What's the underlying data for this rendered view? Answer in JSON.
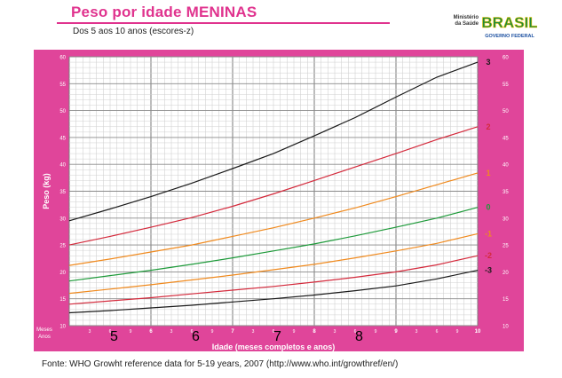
{
  "header": {
    "title": "Peso por idade MENINAS",
    "subtitle": "Dos 5 aos 10 anos (escores-z)"
  },
  "logo": {
    "ministry_line1": "Ministério",
    "ministry_line2": "da Saúde",
    "brand": "BRASIL",
    "tagline": "GOVERNO FEDERAL"
  },
  "footer": {
    "source": "Fonte: WHO Growht reference data for 5-19 years, 2007 (http://www.who.int/growthref/en/)"
  },
  "colors": {
    "frame": "#e0459a",
    "z3": "#1a1a1a",
    "z2": "#d42a3c",
    "z1": "#f08a1e",
    "z0": "#1e9a3a",
    "zm1": "#f08a1e",
    "zm2": "#d42a3c",
    "zm3": "#1a1a1a"
  },
  "chart_data": {
    "type": "line",
    "title": "Peso por idade MENINAS",
    "xlabel": "Idade (meses completos e anos)",
    "ylabel": "Peso (kg)",
    "corner_label_top": "Meses",
    "corner_label_bottom": "Anos",
    "xlim": [
      5,
      10
    ],
    "ylim": [
      10,
      60
    ],
    "yticks": [
      10,
      15,
      20,
      25,
      30,
      35,
      40,
      45,
      50,
      55,
      60
    ],
    "year_ticks": [
      "6",
      "7",
      "8",
      "9",
      "10"
    ],
    "month_ticks": [
      "3",
      "6",
      "9"
    ],
    "grid": true,
    "x": [
      5,
      5.5,
      6,
      6.5,
      7,
      7.5,
      8,
      8.5,
      9,
      9.5,
      10
    ],
    "series": [
      {
        "name": "3",
        "values": [
          29.5,
          31.7,
          34.0,
          36.5,
          39.2,
          42.0,
          45.3,
          48.7,
          52.5,
          56.2,
          59.0
        ]
      },
      {
        "name": "2",
        "values": [
          25.0,
          26.6,
          28.3,
          30.1,
          32.2,
          34.5,
          37.0,
          39.5,
          42.0,
          44.6,
          47.0
        ]
      },
      {
        "name": "1",
        "values": [
          21.2,
          22.4,
          23.7,
          25.0,
          26.6,
          28.2,
          30.0,
          31.9,
          34.0,
          36.2,
          38.4
        ]
      },
      {
        "name": "0",
        "values": [
          18.3,
          19.3,
          20.3,
          21.4,
          22.6,
          23.9,
          25.2,
          26.7,
          28.3,
          30.0,
          32.0
        ]
      },
      {
        "name": "-1",
        "values": [
          16.0,
          16.8,
          17.6,
          18.5,
          19.4,
          20.4,
          21.4,
          22.6,
          23.9,
          25.3,
          27.1
        ]
      },
      {
        "name": "-2",
        "values": [
          14.0,
          14.6,
          15.2,
          15.9,
          16.6,
          17.3,
          18.1,
          19.0,
          20.0,
          21.3,
          23.0
        ]
      },
      {
        "name": "-3",
        "values": [
          12.4,
          12.8,
          13.3,
          13.8,
          14.4,
          15.0,
          15.7,
          16.5,
          17.4,
          18.7,
          20.3
        ]
      }
    ]
  }
}
